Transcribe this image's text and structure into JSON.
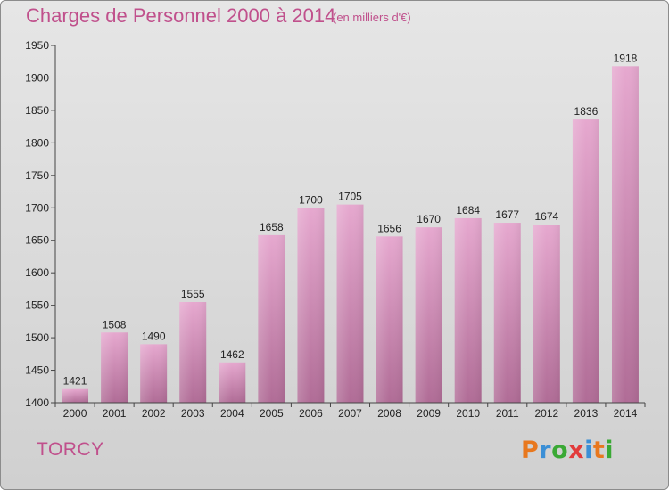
{
  "title": "Charges de Personnel 2000 à 2014",
  "subtitle": "(en milliers d'€)",
  "commune": "TORCY",
  "logo": {
    "letters": [
      "P",
      "r",
      "o",
      "x",
      "i",
      "t",
      "i"
    ],
    "colors": [
      "#e8781e",
      "#3b8fd6",
      "#3aa935",
      "#e23a3a",
      "#3b8fd6",
      "#e8781e",
      "#3aa935"
    ]
  },
  "colors": {
    "bar_top": "#e6a8cf",
    "bar_bottom": "#b06c96",
    "accent": "#c0508c"
  },
  "chart_data": {
    "type": "bar",
    "title": "Charges de Personnel 2000 à 2014",
    "subtitle": "(en milliers d'€)",
    "xlabel": "",
    "ylabel": "",
    "categories": [
      "2000",
      "2001",
      "2002",
      "2003",
      "2004",
      "2005",
      "2006",
      "2007",
      "2008",
      "2009",
      "2010",
      "2011",
      "2012",
      "2013",
      "2014"
    ],
    "values": [
      1421,
      1508,
      1490,
      1555,
      1462,
      1658,
      1700,
      1705,
      1656,
      1670,
      1684,
      1677,
      1674,
      1836,
      1918
    ],
    "ylim": [
      1400,
      1950
    ],
    "yticks": [
      1400,
      1450,
      1500,
      1550,
      1600,
      1650,
      1700,
      1750,
      1800,
      1850,
      1900,
      1950
    ],
    "grid": false,
    "data_labels": true
  }
}
